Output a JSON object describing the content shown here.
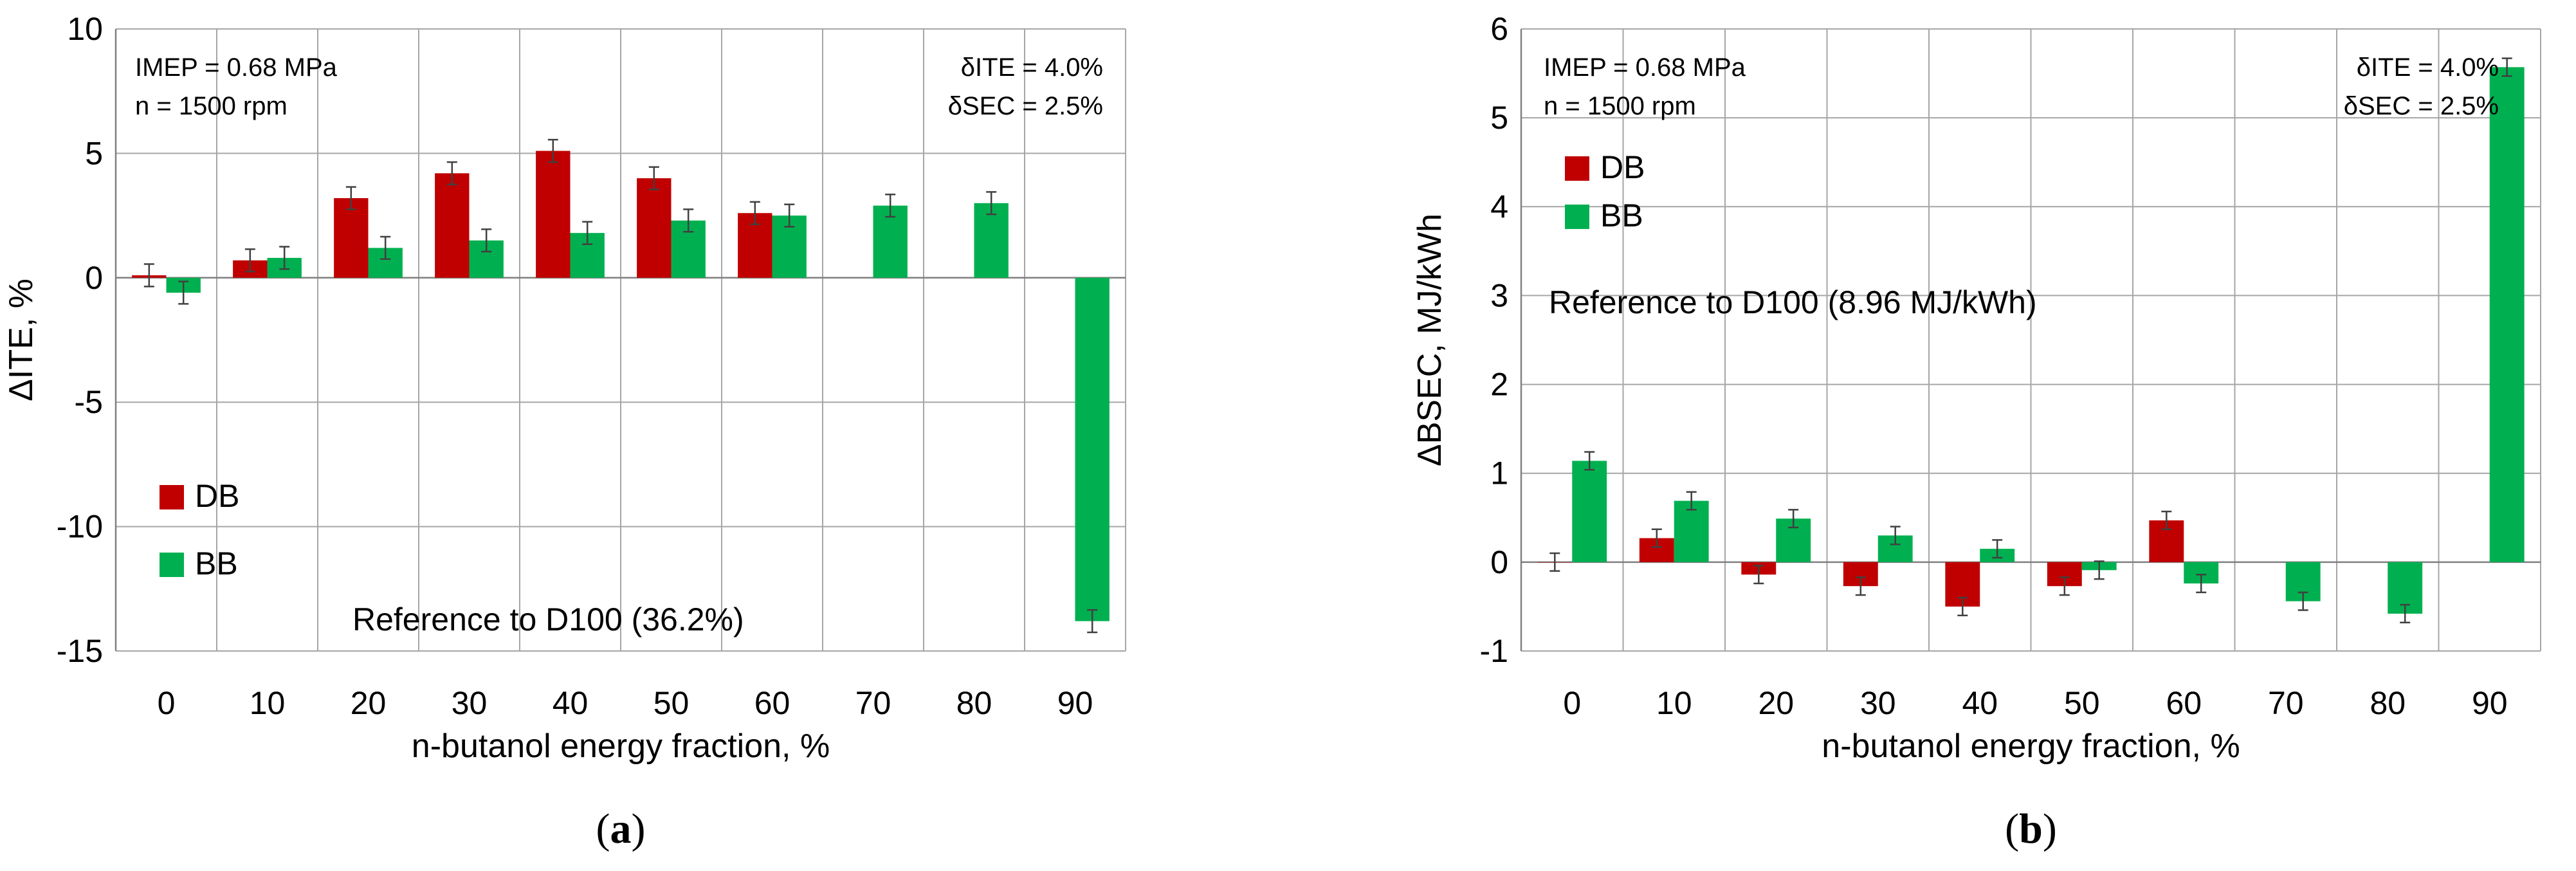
{
  "chart_data": [
    {
      "panel": "(a)",
      "caption": "(a)",
      "type": "bar",
      "xlabel": "n-butanol energy fraction, %",
      "ylabel": "ΔITE, %",
      "categories": [
        "0",
        "10",
        "20",
        "30",
        "40",
        "50",
        "60",
        "70",
        "80",
        "90"
      ],
      "yticks": [
        "10",
        "5",
        "0",
        "-5",
        "-10",
        "-15"
      ],
      "ylim": [
        -15,
        10
      ],
      "grid": true,
      "notes_left": [
        "IMEP = 0.68 MPa",
        "n = 1500 rpm"
      ],
      "notes_right": [
        "δITE = 4.0%",
        "δSEC = 2.5%"
      ],
      "reference": "Reference to D100 (36.2%)",
      "legend": "left, lower",
      "series": [
        {
          "name": "DB",
          "color": "#c00000",
          "values": [
            0.1,
            0.7,
            3.2,
            4.2,
            5.1,
            4.0,
            2.6,
            null,
            null,
            null
          ],
          "error": 0.45
        },
        {
          "name": "BB",
          "color": "#00b050",
          "values": [
            -0.6,
            0.8,
            1.2,
            1.5,
            1.8,
            2.3,
            2.5,
            2.9,
            3.0,
            -13.8
          ],
          "error": 0.45
        }
      ]
    },
    {
      "panel": "(b)",
      "caption": "(b)",
      "type": "bar",
      "xlabel": "n-butanol energy fraction, %",
      "ylabel": "ΔBSEC, MJ/kWh",
      "categories": [
        "0",
        "10",
        "20",
        "30",
        "40",
        "50",
        "60",
        "70",
        "80",
        "90"
      ],
      "yticks": [
        "6",
        "5",
        "4",
        "3",
        "2",
        "1",
        "0",
        "-1"
      ],
      "ylim": [
        -1,
        6
      ],
      "grid": true,
      "notes_left": [
        "IMEP = 0.68 MPa",
        "n = 1500 rpm"
      ],
      "notes_right": [
        "δITE = 4.0%",
        "δSEC = 2.5%"
      ],
      "reference": "Reference to D100 (8.96 MJ/kWh)",
      "legend": "left, upper",
      "series": [
        {
          "name": "DB",
          "color": "#c00000",
          "values": [
            0.0,
            0.27,
            -0.14,
            -0.27,
            -0.5,
            -0.27,
            0.47,
            null,
            null,
            null
          ],
          "error": 0.1
        },
        {
          "name": "BB",
          "color": "#00b050",
          "values": [
            1.14,
            0.69,
            0.49,
            0.3,
            0.15,
            -0.09,
            -0.24,
            -0.44,
            -0.58,
            5.57
          ],
          "error": 0.1
        }
      ]
    }
  ]
}
